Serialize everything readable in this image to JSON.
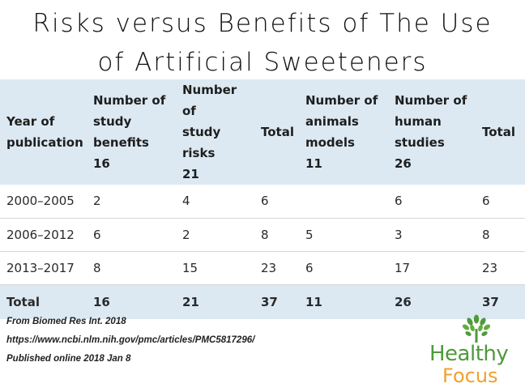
{
  "title": {
    "line1": "Risks versus Benefits of The Use",
    "line2": "of Artificial Sweeteners"
  },
  "table": {
    "headers": [
      [
        "Year of",
        "publication"
      ],
      [
        "Number of",
        "study",
        "benefits",
        "16"
      ],
      [
        "Number of",
        "study risks",
        "21"
      ],
      [
        "Total"
      ],
      [
        "Number of",
        "animals",
        "models",
        "11"
      ],
      [
        "Number of",
        "human",
        "studies",
        "26"
      ],
      [
        "Total"
      ]
    ],
    "rows": [
      [
        "2000–2005",
        "2",
        "4",
        "6",
        "",
        "6",
        "6"
      ],
      [
        "2006–2012",
        "6",
        "2",
        "8",
        "5",
        "3",
        "8"
      ],
      [
        "2013–2017",
        "8",
        "15",
        "23",
        "6",
        "17",
        "23"
      ]
    ],
    "total_row": [
      "Total",
      "16",
      "21",
      "37",
      "11",
      "26",
      "37"
    ]
  },
  "source": {
    "line1": "From Biomed Res Int. 2018",
    "line2": "https://www.ncbi.nlm.nih.gov/pmc/articles/PMC5817296/",
    "line3": "Published online 2018 Jan 8"
  },
  "logo": {
    "word1": "Healthy",
    "word2": "Focus",
    "icon": "tree-icon",
    "colors": {
      "green": "#4e9a3a",
      "orange": "#f0a12c"
    }
  },
  "colors": {
    "header_bg": "#dce9f3",
    "total_bg": "#dce9f3"
  }
}
